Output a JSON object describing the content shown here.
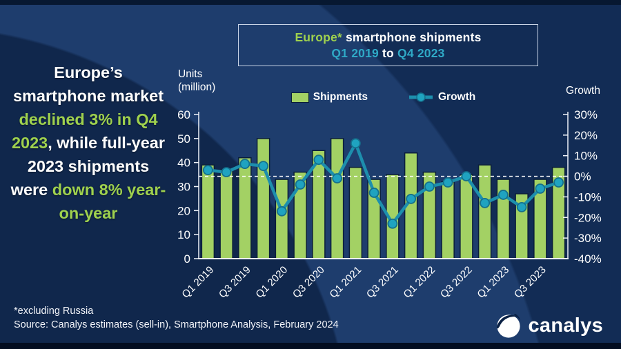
{
  "colors": {
    "white": "#ffffff",
    "green": "#9fd14e",
    "teal": "#2fa9c6",
    "bar_green": "#a3d164",
    "bar_border": "#0b1e3a",
    "line_teal": "#1d8fad",
    "marker_teal": "#1fa3c0",
    "marker_edge": "#15708c",
    "background": "#0d2549"
  },
  "slide": {
    "headline_segments": [
      {
        "t": "Europe’s smartphone market ",
        "c": "white"
      },
      {
        "t": "declined 3% in Q4 2023",
        "c": "green"
      },
      {
        "t": ", while full-year 2023 shipments were ",
        "c": "white"
      },
      {
        "t": "down 8% year-on-year",
        "c": "green"
      }
    ],
    "title_box": {
      "line1": [
        {
          "t": "Europe*",
          "c": "green"
        },
        {
          "t": " smartphone shipments",
          "c": "white"
        }
      ],
      "line2": [
        {
          "t": "Q1 2019",
          "c": "teal"
        },
        {
          "t": " to ",
          "c": "white"
        },
        {
          "t": "Q4 2023",
          "c": "teal"
        }
      ]
    },
    "footnote": "*excluding Russia",
    "source": "Source: Canalys estimates (sell-in), Smartphone Analysis, February 2024",
    "logo_text": "canalys"
  },
  "chart_data": {
    "type": "bar",
    "title": "Europe* smartphone shipments Q1 2019 to Q4 2023",
    "categories": [
      "Q1 2019",
      "Q2 2019",
      "Q3 2019",
      "Q4 2019",
      "Q1 2020",
      "Q2 2020",
      "Q3 2020",
      "Q4 2020",
      "Q1 2021",
      "Q2 2021",
      "Q3 2021",
      "Q4 2021",
      "Q1 2022",
      "Q2 2022",
      "Q3 2022",
      "Q4 2022",
      "Q1 2023",
      "Q2 2023",
      "Q3 2023",
      "Q4 2023"
    ],
    "x_tick_labels": [
      "Q1 2019",
      "Q3 2019",
      "Q1 2020",
      "Q3 2020",
      "Q1 2021",
      "Q3 2021",
      "Q1 2022",
      "Q3 2022",
      "Q1 2023",
      "Q3 2023"
    ],
    "series": [
      {
        "name": "Shipments",
        "type": "bar",
        "axis": "left",
        "unit": "million units",
        "values": [
          39,
          37,
          42,
          50,
          33,
          36,
          45,
          50,
          38,
          33,
          35,
          44,
          36,
          32,
          35,
          39,
          33,
          27,
          33,
          38
        ]
      },
      {
        "name": "Growth",
        "type": "line",
        "axis": "right",
        "unit": "percent year-on-year",
        "values": [
          3,
          2,
          6,
          5,
          -17,
          -4,
          8,
          -1,
          16,
          -8,
          -23,
          -11,
          -5,
          -3,
          0,
          -13,
          -9,
          -15,
          -6,
          -3
        ]
      }
    ],
    "left_axis": {
      "label": "Units\n(million)",
      "min": 0,
      "max": 60,
      "tick_values": [
        0,
        10,
        20,
        30,
        40,
        50,
        60
      ]
    },
    "right_axis": {
      "label": "Growth",
      "min": -40,
      "max": 30,
      "tick_labels": [
        "30%",
        "20%",
        "10%",
        "0%",
        "-10%",
        "-20%",
        "-30%",
        "-40%"
      ]
    },
    "zero_growth_reference_line": "white dashed at 0%",
    "legend_position": "top-center",
    "grid": "off"
  }
}
